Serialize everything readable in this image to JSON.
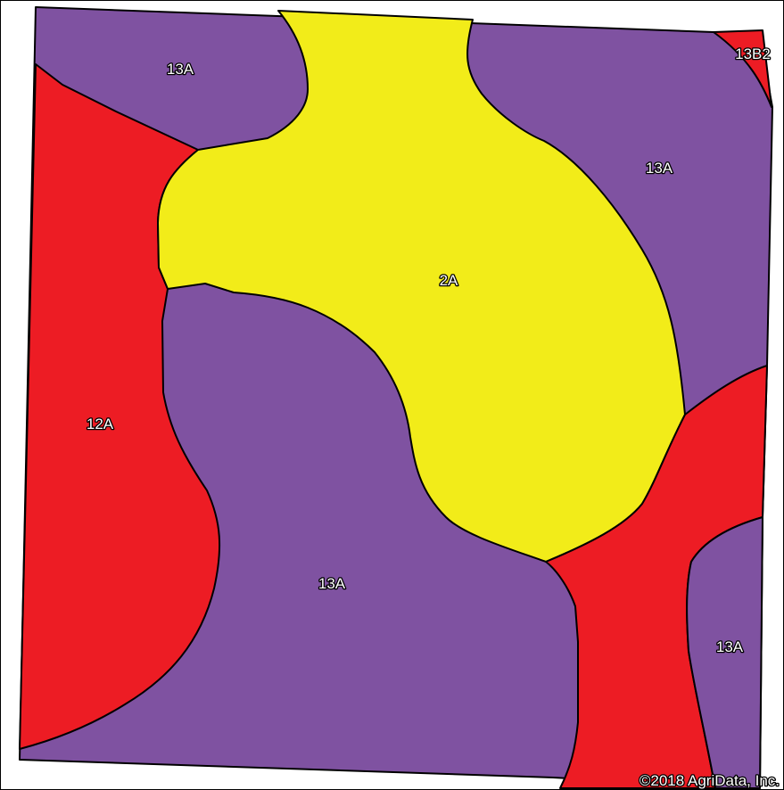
{
  "map": {
    "colors": {
      "purple": "#7f52a1",
      "red": "#ed1c24",
      "yellow": "#f2ec19",
      "outline": "#000000",
      "background": "#ffffff"
    },
    "units": [
      {
        "id": "unit-13A-top",
        "symbol": "13A",
        "color": "#7f52a1"
      },
      {
        "id": "unit-13B2",
        "symbol": "13B2",
        "color": "#ed1c24"
      },
      {
        "id": "unit-13A-right",
        "symbol": "13A",
        "color": "#7f52a1"
      },
      {
        "id": "unit-2A",
        "symbol": "2A",
        "color": "#f2ec19"
      },
      {
        "id": "unit-12A",
        "symbol": "12A",
        "color": "#ed1c24"
      },
      {
        "id": "unit-13A-center",
        "symbol": "13A",
        "color": "#7f52a1"
      },
      {
        "id": "unit-13A-bottom-right",
        "symbol": "13A",
        "color": "#7f52a1"
      }
    ],
    "copyright": "©2018 AgriData, Inc."
  }
}
